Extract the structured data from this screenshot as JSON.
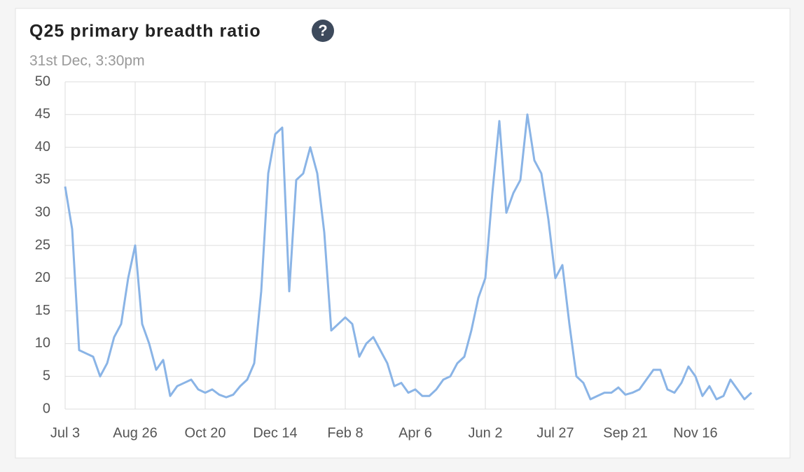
{
  "chart_data": {
    "type": "line",
    "title": "Q25 primary breadth ratio",
    "help_icon": "?",
    "subtitle": "31st Dec, 3:30pm",
    "categories": [
      "Jul 3",
      null,
      null,
      null,
      null,
      null,
      null,
      null,
      null,
      null,
      "Aug 26",
      null,
      null,
      null,
      null,
      null,
      null,
      null,
      null,
      null,
      "Oct 20",
      null,
      null,
      null,
      null,
      null,
      null,
      null,
      null,
      null,
      "Dec 14",
      null,
      null,
      null,
      null,
      null,
      null,
      null,
      null,
      null,
      "Feb 8",
      null,
      null,
      null,
      null,
      null,
      null,
      null,
      null,
      null,
      "Apr 6",
      null,
      null,
      null,
      null,
      null,
      null,
      null,
      null,
      null,
      "Jun 2",
      null,
      null,
      null,
      null,
      null,
      null,
      null,
      null,
      null,
      "Jul 27",
      null,
      null,
      null,
      null,
      null,
      null,
      null,
      null,
      null,
      "Sep 21",
      null,
      null,
      null,
      null,
      null,
      null,
      null,
      null,
      null,
      "Nov 16",
      null,
      null,
      null,
      null,
      null,
      null,
      null,
      null
    ],
    "series": [
      {
        "color": "#8ab4e6",
        "values": [
          34,
          27.5,
          9,
          8.5,
          8,
          5,
          7,
          11,
          13,
          20,
          25,
          13,
          10,
          6,
          7.5,
          2,
          3.5,
          4,
          4.5,
          3,
          2.5,
          3,
          2.2,
          1.8,
          2.2,
          3.5,
          4.5,
          7,
          18,
          36,
          42,
          43,
          18,
          35,
          36,
          40,
          36,
          27,
          12,
          13,
          14,
          13,
          8,
          10,
          11,
          9,
          7,
          3.5,
          4,
          2.5,
          3,
          2,
          2,
          3,
          4.5,
          5,
          7,
          8,
          12,
          17,
          20,
          33,
          44,
          30,
          33,
          35,
          45,
          38,
          36,
          29,
          20,
          22,
          13,
          5,
          4,
          1.5,
          2,
          2.5,
          2.5,
          3.3,
          2.2,
          2.5,
          3,
          4.5,
          6,
          6,
          3,
          2.5,
          4,
          6.5,
          5,
          2,
          3.5,
          1.5,
          2,
          4.5,
          3,
          1.5,
          2.5
        ]
      }
    ],
    "ylim": [
      0,
      50
    ],
    "yticks": [
      0,
      5,
      10,
      15,
      20,
      25,
      30,
      35,
      40,
      45,
      50
    ],
    "grid": true
  }
}
